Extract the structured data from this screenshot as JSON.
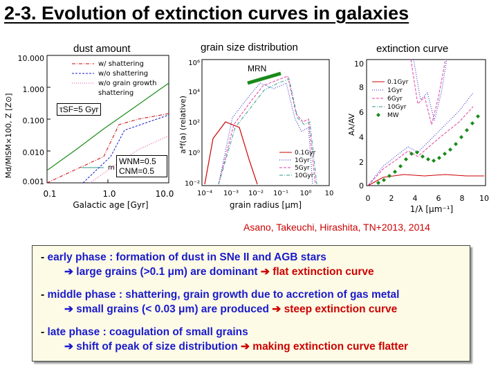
{
  "title": "2-3. Evolution of extinction curves in galaxies",
  "captions": {
    "dust_amount": "dust amount",
    "grain_size": "grain size distribution",
    "extinction": "extinction curve",
    "mrn": "MRN"
  },
  "panel1": {
    "legend": [
      "w/ shattering",
      "w/o shattering",
      "w/o grain growth",
      "shattering"
    ],
    "legend_extra": "m",
    "ylabel": "Md/MISM×100, Z [Z⊙]",
    "xlabel": "Galactic age [Gyr]",
    "yticks": [
      "10.000",
      "1.000",
      "0.100",
      "0.010",
      "0.001"
    ],
    "xticks": [
      "0.1",
      "1.0",
      "10.0"
    ],
    "tsf": "τSF=5 Gyr",
    "wnm": "WNM=0.5",
    "cnm": "CNM=0.5"
  },
  "panel2": {
    "ylabel": "a⁴f(a) (relative)",
    "xlabel": "grain radius [μm]",
    "yticks": [
      "10⁶",
      "10⁴",
      "10²",
      "10⁰",
      "10⁻²"
    ],
    "xticks": [
      "10⁻⁴",
      "10⁻³",
      "10⁻²",
      "10⁻¹",
      "10⁰",
      "10"
    ],
    "legend": [
      "0.1Gyr",
      "1Gyr",
      "5Gyr",
      "10Gyr"
    ]
  },
  "panel3": {
    "ylabel": "Aλ/AV",
    "xlabel": "1/λ [μm⁻¹]",
    "yticks": [
      "10",
      "8",
      "6",
      "4",
      "2",
      "0"
    ],
    "xticks": [
      "0",
      "2",
      "4",
      "6",
      "8",
      "10"
    ],
    "legend": [
      "0.1Gyr",
      "1Gyr",
      "6Gyr",
      "10Gyr",
      "MW"
    ]
  },
  "citation": "Asano, Takeuchi, Hirashita, TN+2013, 2014",
  "summary": {
    "early": {
      "dash": "- ",
      "phase": "early phase",
      "desc": " : formation of dust in SNe II and AGB stars",
      "arrow": "➔ ",
      "sub1": "large grains (>0.1 μm) are dominant ",
      "arrow2": "➔ ",
      "sub2": "flat extinction curve"
    },
    "middle": {
      "dash": "- ",
      "phase": "middle phase",
      "desc": " : shattering, grain growth due to accretion of gas metal",
      "arrow": "➔ ",
      "sub1": "small grains (< 0.03 μm) are produced ",
      "arrow2": "➔ ",
      "sub2": "steep extinction curve"
    },
    "late": {
      "dash": "- ",
      "phase": "late phase",
      "desc": " : coagulation of small grains",
      "arrow": "➔ ",
      "sub1": "shift of peak of size distribution ",
      "arrow2": "➔ ",
      "sub2": "making extinction curve flatter"
    }
  },
  "colors": {
    "red": "#cc0000",
    "blue": "#1a1acc",
    "green": "#1a8a1a",
    "pink": "#e040a0",
    "teal": "#2a9a8a"
  }
}
